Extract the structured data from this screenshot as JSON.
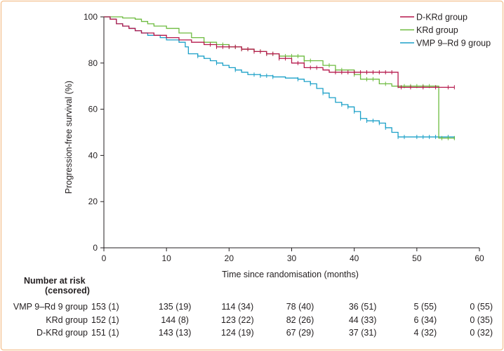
{
  "chart_data": {
    "type": "line",
    "subtype": "kaplan-meier",
    "xlabel": "Time since randomisation (months)",
    "ylabel": "Progression-free survival (%)",
    "xlim": [
      0,
      60
    ],
    "ylim": [
      0,
      100
    ],
    "xticks": [
      0,
      10,
      20,
      30,
      40,
      50,
      60
    ],
    "yticks": [
      0,
      20,
      40,
      60,
      80,
      100
    ],
    "grid": false,
    "legend_position": "top-right",
    "series": [
      {
        "name": "D-KRd group",
        "color": "#b5174b",
        "steps": [
          [
            0,
            100
          ],
          [
            1,
            99
          ],
          [
            2,
            97
          ],
          [
            3,
            96
          ],
          [
            4,
            95
          ],
          [
            5,
            94
          ],
          [
            6,
            93
          ],
          [
            8,
            92
          ],
          [
            10,
            91
          ],
          [
            12,
            90
          ],
          [
            14,
            89
          ],
          [
            16,
            88
          ],
          [
            18,
            87
          ],
          [
            22,
            86
          ],
          [
            24,
            85
          ],
          [
            26,
            84
          ],
          [
            28,
            82
          ],
          [
            30,
            80
          ],
          [
            32,
            78
          ],
          [
            35,
            77
          ],
          [
            36,
            76
          ],
          [
            46.8,
            76
          ],
          [
            47,
            69.5
          ],
          [
            56,
            69.5
          ]
        ],
        "censor_x": [
          17,
          18,
          19,
          20,
          21,
          22,
          23,
          24,
          25,
          26,
          27,
          28,
          29,
          31,
          33,
          34,
          37,
          38,
          39,
          40,
          41,
          42,
          43,
          44,
          45,
          46,
          47.5,
          49,
          51,
          53,
          55,
          56
        ]
      },
      {
        "name": "KRd group",
        "color": "#6dbb3f",
        "steps": [
          [
            0,
            100
          ],
          [
            3,
            99.5
          ],
          [
            5,
            99
          ],
          [
            6,
            98
          ],
          [
            7,
            97
          ],
          [
            8,
            96
          ],
          [
            10,
            95
          ],
          [
            12,
            93
          ],
          [
            14,
            91
          ],
          [
            16,
            89
          ],
          [
            18,
            88
          ],
          [
            20,
            87
          ],
          [
            22,
            86
          ],
          [
            24,
            85
          ],
          [
            26,
            84
          ],
          [
            28,
            83
          ],
          [
            32,
            81
          ],
          [
            35,
            79
          ],
          [
            37,
            77
          ],
          [
            40,
            75
          ],
          [
            41,
            73
          ],
          [
            44,
            71
          ],
          [
            46,
            70
          ],
          [
            53.3,
            70
          ],
          [
            53.5,
            47.5
          ],
          [
            56,
            47.5
          ]
        ],
        "censor_x": [
          19,
          20,
          21,
          22,
          23,
          24,
          25,
          26,
          27,
          28,
          29,
          30,
          31,
          32,
          33,
          36,
          37,
          38,
          40,
          42,
          43,
          45,
          47,
          48,
          49,
          50,
          51,
          52,
          54,
          55,
          56
        ]
      },
      {
        "name": "VMP 9–Rd 9 group",
        "color": "#1ba0c8",
        "steps": [
          [
            0,
            100
          ],
          [
            1,
            99
          ],
          [
            2,
            97
          ],
          [
            3,
            96
          ],
          [
            4,
            95
          ],
          [
            5,
            94
          ],
          [
            6,
            93
          ],
          [
            7,
            92
          ],
          [
            9,
            91
          ],
          [
            10,
            90
          ],
          [
            12,
            89
          ],
          [
            13,
            87
          ],
          [
            13.5,
            84
          ],
          [
            15,
            83
          ],
          [
            16,
            82
          ],
          [
            17,
            81
          ],
          [
            18,
            80
          ],
          [
            19,
            79
          ],
          [
            20,
            78
          ],
          [
            21,
            77
          ],
          [
            22,
            76
          ],
          [
            23,
            75
          ],
          [
            25,
            74.5
          ],
          [
            27,
            74
          ],
          [
            29,
            73.5
          ],
          [
            31,
            73
          ],
          [
            32,
            72
          ],
          [
            33,
            71
          ],
          [
            34,
            69
          ],
          [
            35,
            67
          ],
          [
            36,
            65
          ],
          [
            37,
            63
          ],
          [
            38,
            62
          ],
          [
            39,
            61
          ],
          [
            40,
            59
          ],
          [
            41,
            56
          ],
          [
            42,
            55
          ],
          [
            44,
            54
          ],
          [
            45,
            52
          ],
          [
            46,
            50
          ],
          [
            47,
            48
          ],
          [
            56,
            47
          ]
        ],
        "censor_x": [
          15,
          18,
          21,
          24,
          25,
          26,
          27,
          31,
          33,
          35,
          38,
          39,
          40,
          41,
          42,
          43,
          44,
          45,
          47,
          48,
          50,
          51,
          52,
          53,
          55
        ]
      }
    ],
    "number_at_risk": {
      "heading": [
        "Number at risk",
        "(censored)"
      ],
      "times": [
        0,
        10,
        20,
        30,
        40,
        50,
        60
      ],
      "rows": [
        {
          "label": "VMP 9–Rd 9 group",
          "values": [
            "153 (1)",
            "135 (19)",
            "114 (34)",
            "78 (40)",
            "36 (51)",
            "5 (55)",
            "0 (55)"
          ]
        },
        {
          "label": "KRd group",
          "values": [
            "152 (1)",
            "144 (8)",
            "123 (22)",
            "82 (26)",
            "44 (33)",
            "6 (34)",
            "0 (35)"
          ]
        },
        {
          "label": "D-KRd group",
          "values": [
            "151 (1)",
            "143 (13)",
            "124 (19)",
            "67 (29)",
            "37 (31)",
            "4 (32)",
            "0 (32)"
          ]
        }
      ]
    }
  }
}
